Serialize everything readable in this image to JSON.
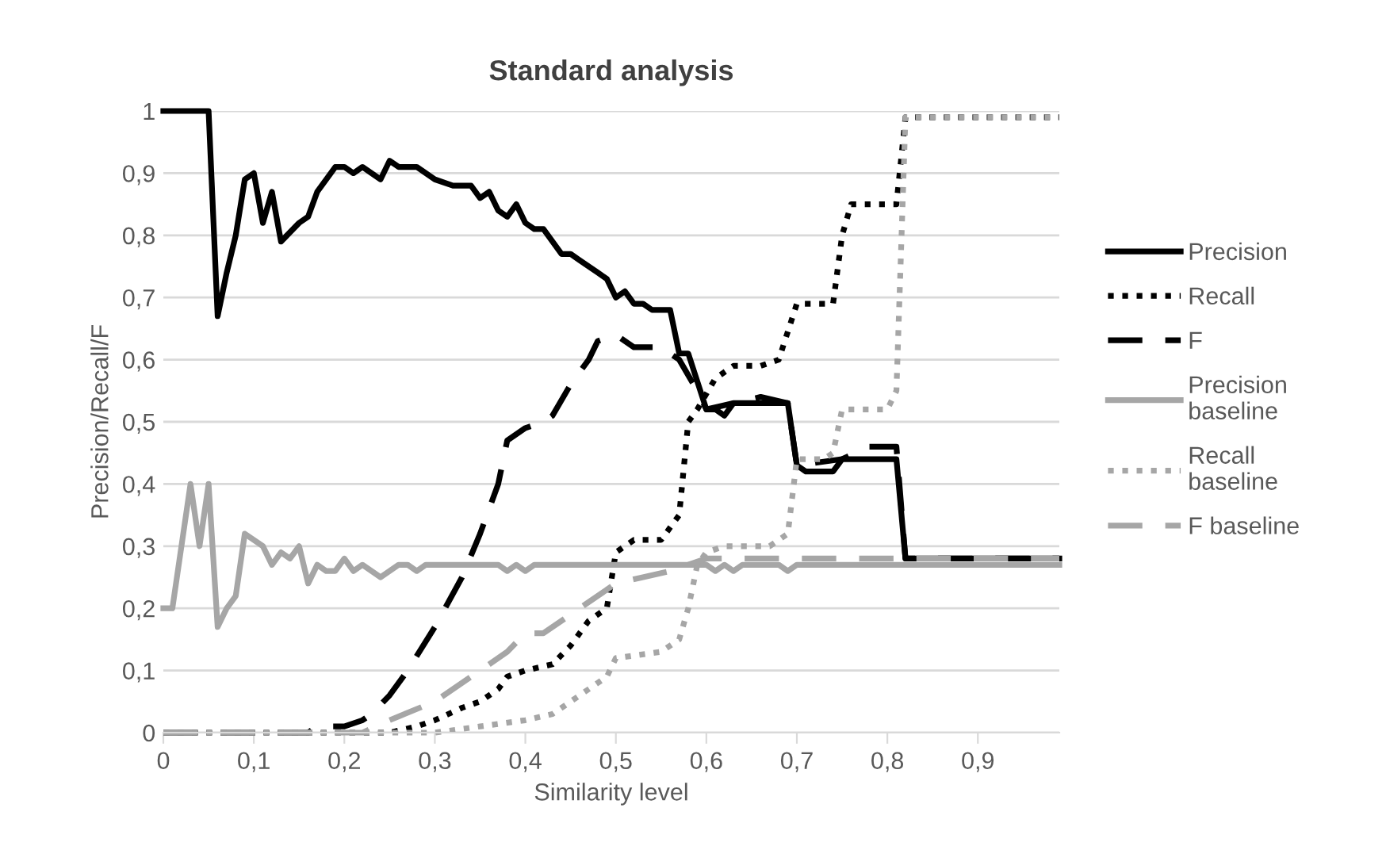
{
  "chart_data": {
    "type": "line",
    "title": "Standard analysis",
    "xlabel": "Similarity level",
    "ylabel": "Precision/Recall/F",
    "xlim": [
      0,
      0.99
    ],
    "xticks": [
      0,
      {
        "value": 0.1,
        "label": "0,1"
      },
      {
        "value": 0.2,
        "label": "0,2"
      },
      {
        "value": 0.3,
        "label": "0,3"
      },
      {
        "value": 0.4,
        "label": "0,4"
      },
      {
        "value": 0.5,
        "label": "0,5"
      },
      {
        "value": 0.6,
        "label": "0,6"
      },
      {
        "value": 0.7,
        "label": "0,7"
      },
      {
        "value": 0.8,
        "label": "0,8"
      },
      {
        "value": 0.9,
        "label": "0,9"
      }
    ],
    "ylim": [
      0,
      1
    ],
    "yticks": [
      0,
      {
        "value": 0.1,
        "label": "0,1"
      },
      {
        "value": 0.2,
        "label": "0,2"
      },
      {
        "value": 0.3,
        "label": "0,3"
      },
      {
        "value": 0.4,
        "label": "0,4"
      },
      {
        "value": 0.5,
        "label": "0,5"
      },
      {
        "value": 0.6,
        "label": "0,6"
      },
      {
        "value": 0.7,
        "label": "0,7"
      },
      {
        "value": 0.8,
        "label": "0,8"
      },
      {
        "value": 0.9,
        "label": "0,9"
      },
      1
    ],
    "grid": "y",
    "legend": "right",
    "marker": "none",
    "series": [
      {
        "name": "Precision",
        "color": "#000000",
        "line_style": "solid",
        "x": [
          0,
          0.05,
          0.06,
          0.07,
          0.08,
          0.09,
          0.1,
          0.11,
          0.12,
          0.13,
          0.15,
          0.16,
          0.17,
          0.19,
          0.2,
          0.21,
          0.22,
          0.24,
          0.25,
          0.26,
          0.28,
          0.3,
          0.32,
          0.34,
          0.35,
          0.36,
          0.37,
          0.38,
          0.39,
          0.4,
          0.41,
          0.42,
          0.44,
          0.45,
          0.46,
          0.48,
          0.49,
          0.5,
          0.51,
          0.52,
          0.53,
          0.54,
          0.56,
          0.57,
          0.58,
          0.6,
          0.61,
          0.62,
          0.63,
          0.69,
          0.7,
          0.71,
          0.74,
          0.75,
          0.81,
          0.82,
          0.99
        ],
        "values": [
          1,
          1,
          0.67,
          0.74,
          0.8,
          0.89,
          0.9,
          0.82,
          0.87,
          0.79,
          0.82,
          0.83,
          0.87,
          0.91,
          0.91,
          0.9,
          0.91,
          0.89,
          0.92,
          0.91,
          0.91,
          0.89,
          0.88,
          0.88,
          0.86,
          0.87,
          0.84,
          0.83,
          0.85,
          0.82,
          0.81,
          0.81,
          0.77,
          0.77,
          0.76,
          0.74,
          0.73,
          0.7,
          0.71,
          0.69,
          0.69,
          0.68,
          0.68,
          0.61,
          0.61,
          0.52,
          0.52,
          0.51,
          0.53,
          0.53,
          0.43,
          0.42,
          0.42,
          0.44,
          0.44,
          0.28,
          0.28
        ]
      },
      {
        "name": "Recall",
        "color": "#000000",
        "line_style": "dotted",
        "x": [
          0,
          0.25,
          0.28,
          0.3,
          0.33,
          0.35,
          0.37,
          0.38,
          0.4,
          0.43,
          0.45,
          0.47,
          0.49,
          0.5,
          0.51,
          0.52,
          0.55,
          0.57,
          0.58,
          0.59,
          0.61,
          0.62,
          0.63,
          0.66,
          0.68,
          0.7,
          0.74,
          0.75,
          0.76,
          0.81,
          0.82,
          0.99
        ],
        "values": [
          0,
          0,
          0.01,
          0.02,
          0.04,
          0.05,
          0.07,
          0.09,
          0.1,
          0.11,
          0.14,
          0.18,
          0.2,
          0.29,
          0.3,
          0.31,
          0.31,
          0.35,
          0.5,
          0.52,
          0.57,
          0.58,
          0.59,
          0.59,
          0.6,
          0.69,
          0.69,
          0.8,
          0.85,
          0.85,
          0.99,
          0.99
        ]
      },
      {
        "name": "F",
        "color": "#000000",
        "line_style": "dashed",
        "x": [
          0,
          0.16,
          0.17,
          0.2,
          0.22,
          0.23,
          0.25,
          0.27,
          0.3,
          0.33,
          0.35,
          0.37,
          0.38,
          0.4,
          0.42,
          0.43,
          0.45,
          0.47,
          0.48,
          0.5,
          0.52,
          0.55,
          0.57,
          0.59,
          0.6,
          0.63,
          0.66,
          0.69,
          0.7,
          0.75,
          0.78,
          0.81,
          0.82,
          0.99
        ],
        "values": [
          0,
          0,
          0.01,
          0.01,
          0.02,
          0.03,
          0.06,
          0.1,
          0.17,
          0.25,
          0.32,
          0.4,
          0.47,
          0.49,
          0.5,
          0.51,
          0.56,
          0.6,
          0.63,
          0.64,
          0.62,
          0.62,
          0.6,
          0.55,
          0.52,
          0.53,
          0.54,
          0.53,
          0.43,
          0.44,
          0.46,
          0.46,
          0.28,
          0.28
        ]
      },
      {
        "name": "Precision baseline",
        "color": "#a6a6a6",
        "line_style": "solid",
        "x": [
          0,
          0.01,
          0.03,
          0.04,
          0.05,
          0.06,
          0.07,
          0.08,
          0.09,
          0.1,
          0.11,
          0.12,
          0.13,
          0.14,
          0.15,
          0.16,
          0.17,
          0.18,
          0.19,
          0.2,
          0.21,
          0.22,
          0.24,
          0.26,
          0.27,
          0.28,
          0.29,
          0.37,
          0.38,
          0.39,
          0.4,
          0.41,
          0.6,
          0.61,
          0.62,
          0.63,
          0.64,
          0.68,
          0.69,
          0.7,
          0.99
        ],
        "values": [
          0.2,
          0.2,
          0.4,
          0.3,
          0.4,
          0.17,
          0.2,
          0.22,
          0.32,
          0.31,
          0.3,
          0.27,
          0.29,
          0.28,
          0.3,
          0.24,
          0.27,
          0.26,
          0.26,
          0.28,
          0.26,
          0.27,
          0.25,
          0.27,
          0.27,
          0.26,
          0.27,
          0.27,
          0.26,
          0.27,
          0.26,
          0.27,
          0.27,
          0.26,
          0.27,
          0.26,
          0.27,
          0.27,
          0.26,
          0.27,
          0.27
        ]
      },
      {
        "name": "Recall baseline",
        "color": "#a6a6a6",
        "line_style": "dotted",
        "x": [
          0,
          0.3,
          0.35,
          0.4,
          0.43,
          0.45,
          0.47,
          0.49,
          0.5,
          0.55,
          0.57,
          0.58,
          0.59,
          0.6,
          0.62,
          0.67,
          0.69,
          0.7,
          0.73,
          0.74,
          0.75,
          0.8,
          0.81,
          0.82,
          0.99
        ],
        "values": [
          0,
          0,
          0.01,
          0.02,
          0.03,
          0.05,
          0.07,
          0.09,
          0.12,
          0.13,
          0.15,
          0.2,
          0.27,
          0.29,
          0.3,
          0.3,
          0.32,
          0.44,
          0.44,
          0.45,
          0.52,
          0.52,
          0.55,
          0.99,
          0.99
        ]
      },
      {
        "name": "F baseline",
        "color": "#a6a6a6",
        "line_style": "dashed",
        "x": [
          0,
          0.22,
          0.25,
          0.3,
          0.35,
          0.38,
          0.4,
          0.42,
          0.45,
          0.48,
          0.5,
          0.53,
          0.56,
          0.58,
          0.6,
          0.7,
          0.99
        ],
        "values": [
          0,
          0,
          0.02,
          0.05,
          0.1,
          0.13,
          0.16,
          0.16,
          0.19,
          0.22,
          0.24,
          0.25,
          0.26,
          0.27,
          0.28,
          0.28,
          0.28
        ]
      }
    ]
  }
}
